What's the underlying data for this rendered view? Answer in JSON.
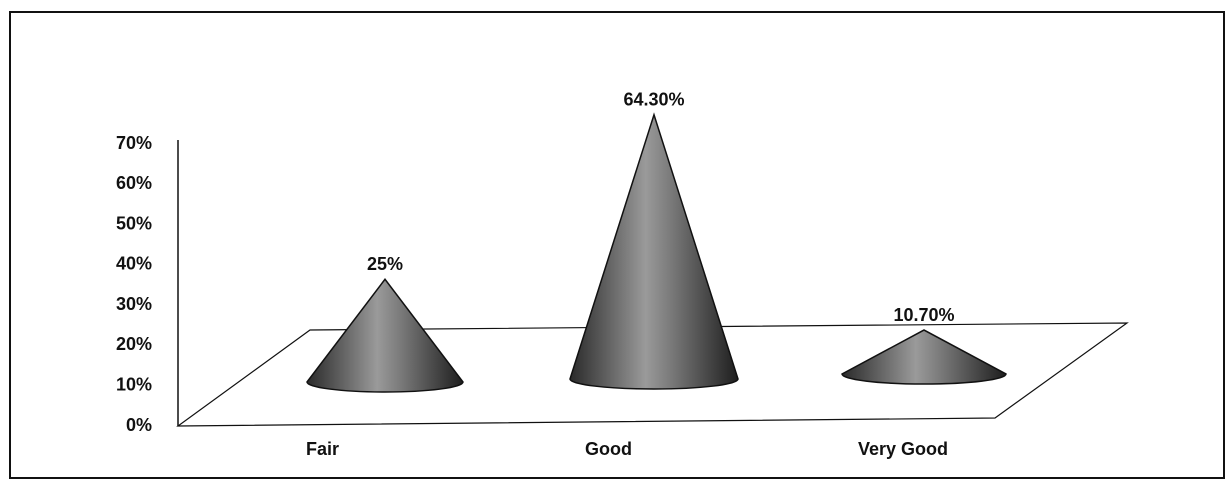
{
  "chart_data": {
    "type": "cone",
    "categories": [
      "Fair",
      "Good",
      "Very Good"
    ],
    "values": [
      25,
      64.3,
      10.7
    ],
    "value_labels": [
      "25%",
      "64.30%",
      "10.70%"
    ],
    "color": "#555555",
    "ylim": [
      0,
      70
    ],
    "yticks": [
      {
        "value": 0,
        "label": "0%"
      },
      {
        "value": 10,
        "label": "10%"
      },
      {
        "value": 20,
        "label": "20%"
      },
      {
        "value": 30,
        "label": "30%"
      },
      {
        "value": 40,
        "label": "40%"
      },
      {
        "value": 50,
        "label": "50%"
      },
      {
        "value": 60,
        "label": "60%"
      },
      {
        "value": 70,
        "label": "70%"
      }
    ]
  }
}
